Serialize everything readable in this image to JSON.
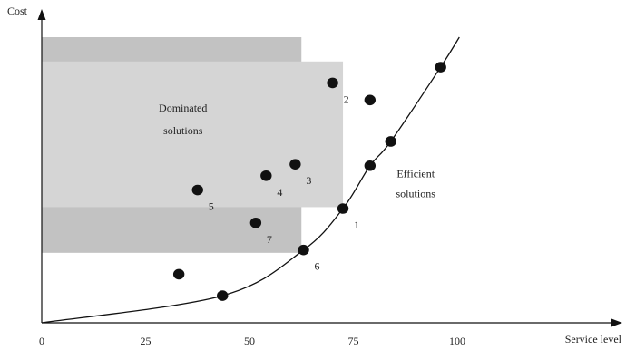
{
  "chart_data": {
    "type": "scatter",
    "title": "",
    "xlabel": "Service level",
    "ylabel": "Cost",
    "xlim": [
      0,
      105
    ],
    "ylim": [
      0,
      100
    ],
    "x_ticks": [
      "0",
      "25",
      "50",
      "75",
      "100"
    ],
    "x_tick_values": [
      0,
      25,
      50,
      75,
      100
    ],
    "grid": false,
    "regions": [
      {
        "name": "outer-region",
        "x": [
          0,
          62.5
        ],
        "y": [
          24.5,
          100
        ],
        "color": "#c2c2c2"
      },
      {
        "name": "inner-region",
        "x": [
          0,
          72.5
        ],
        "y": [
          40.5,
          91.5
        ],
        "color": "#d5d5d5"
      }
    ],
    "annotations": [
      {
        "text": "Dominated",
        "x": 34,
        "y": 74
      },
      {
        "text": "solutions",
        "x": 34,
        "y": 66
      },
      {
        "text": "Efficient",
        "x": 90,
        "y": 51
      },
      {
        "text": "solutions",
        "x": 90,
        "y": 44
      }
    ],
    "frontier": {
      "name": "efficient-frontier",
      "x": [
        0,
        43.5,
        63,
        72.5,
        79,
        84,
        96,
        100.5
      ],
      "y": [
        0,
        9.5,
        25.5,
        40,
        55,
        63.5,
        89.5,
        100
      ]
    },
    "efficient_points": [
      {
        "x": 43.5,
        "y": 9.5,
        "label": ""
      },
      {
        "x": 63,
        "y": 25.5,
        "label": "6"
      },
      {
        "x": 72.5,
        "y": 40,
        "label": "1"
      },
      {
        "x": 79,
        "y": 55,
        "label": ""
      },
      {
        "x": 84,
        "y": 63.5,
        "label": ""
      },
      {
        "x": 96,
        "y": 89.5,
        "label": ""
      }
    ],
    "dominated_points": [
      {
        "x": 70,
        "y": 84,
        "label": "2"
      },
      {
        "x": 79,
        "y": 78,
        "label": ""
      },
      {
        "x": 61,
        "y": 55.5,
        "label": "3"
      },
      {
        "x": 54,
        "y": 51.5,
        "label": "4"
      },
      {
        "x": 37.5,
        "y": 46.5,
        "label": "5"
      },
      {
        "x": 51.5,
        "y": 35,
        "label": "7"
      },
      {
        "x": 33,
        "y": 17,
        "label": ""
      }
    ],
    "colors": {
      "points": "#111111",
      "curve": "#111111",
      "axes": "#111111"
    }
  }
}
